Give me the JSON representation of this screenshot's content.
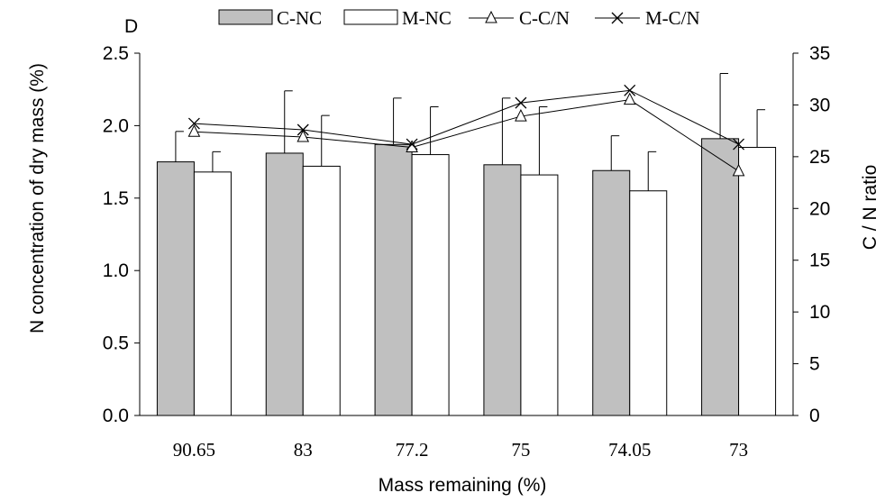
{
  "chart_data": {
    "type": "bar",
    "panel_label": "D",
    "categories": [
      "90.65",
      "83",
      "77.2",
      "75",
      "74.05",
      "73"
    ],
    "xlabel": "Mass remaining (%)",
    "ylabel": "N concentration of  dry mass (%)",
    "y2label": "C / N ratio",
    "ylim": [
      0,
      2.5
    ],
    "y2lim": [
      0,
      35
    ],
    "y_ticks": [
      "0.0",
      "0.5",
      "1.0",
      "1.5",
      "2.0",
      "2.5"
    ],
    "y2_ticks": [
      "0",
      "5",
      "10",
      "15",
      "20",
      "25",
      "30",
      "35"
    ],
    "grid": false,
    "legend_position": "top",
    "series": [
      {
        "name": "C-NC",
        "kind": "bar",
        "axis": "left",
        "color": "#c0c0c0",
        "values": [
          1.75,
          1.81,
          1.87,
          1.73,
          1.69,
          1.91
        ],
        "error": [
          0.21,
          0.43,
          0.32,
          0.46,
          0.24,
          0.45
        ]
      },
      {
        "name": "M-NC",
        "kind": "bar",
        "axis": "left",
        "color": "#ffffff",
        "values": [
          1.68,
          1.72,
          1.8,
          1.66,
          1.55,
          1.85
        ],
        "error": [
          0.14,
          0.35,
          0.33,
          0.47,
          0.27,
          0.26
        ]
      },
      {
        "name": "C-C/N",
        "kind": "line",
        "axis": "right",
        "marker": "triangle",
        "values": [
          27.4,
          26.9,
          25.9,
          28.9,
          30.5,
          23.6
        ]
      },
      {
        "name": "M-C/N",
        "kind": "line",
        "axis": "right",
        "marker": "cross",
        "values": [
          28.2,
          27.6,
          26.2,
          30.2,
          31.4,
          26.2
        ]
      }
    ]
  }
}
